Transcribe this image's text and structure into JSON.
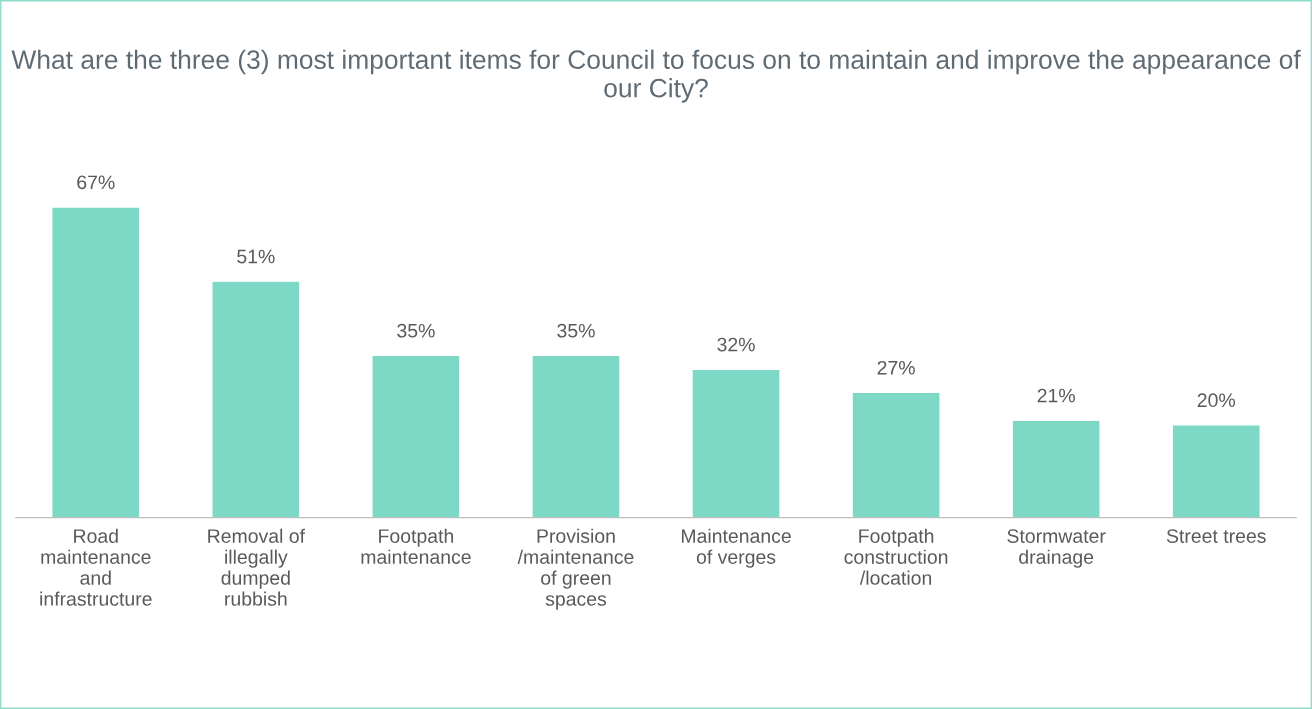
{
  "chart_data": {
    "type": "bar",
    "title": "What are the three (3) most important items for Council to focus on to maintain and improve the appearance of our City?",
    "categories": [
      "Road maintenance and infrastructure",
      "Removal of illegally dumped rubbish",
      "Footpath maintenance",
      "Provision /maintenance of green spaces",
      "Maintenance of verges",
      "Footpath construction /location",
      "Stormwater drainage",
      "Street trees"
    ],
    "values": [
      67,
      51,
      35,
      35,
      32,
      27,
      21,
      20
    ],
    "value_labels": [
      "67%",
      "51%",
      "35%",
      "35%",
      "32%",
      "27%",
      "21%",
      "20%"
    ],
    "color": "#7dd9c6",
    "grid": false,
    "legend": false
  }
}
